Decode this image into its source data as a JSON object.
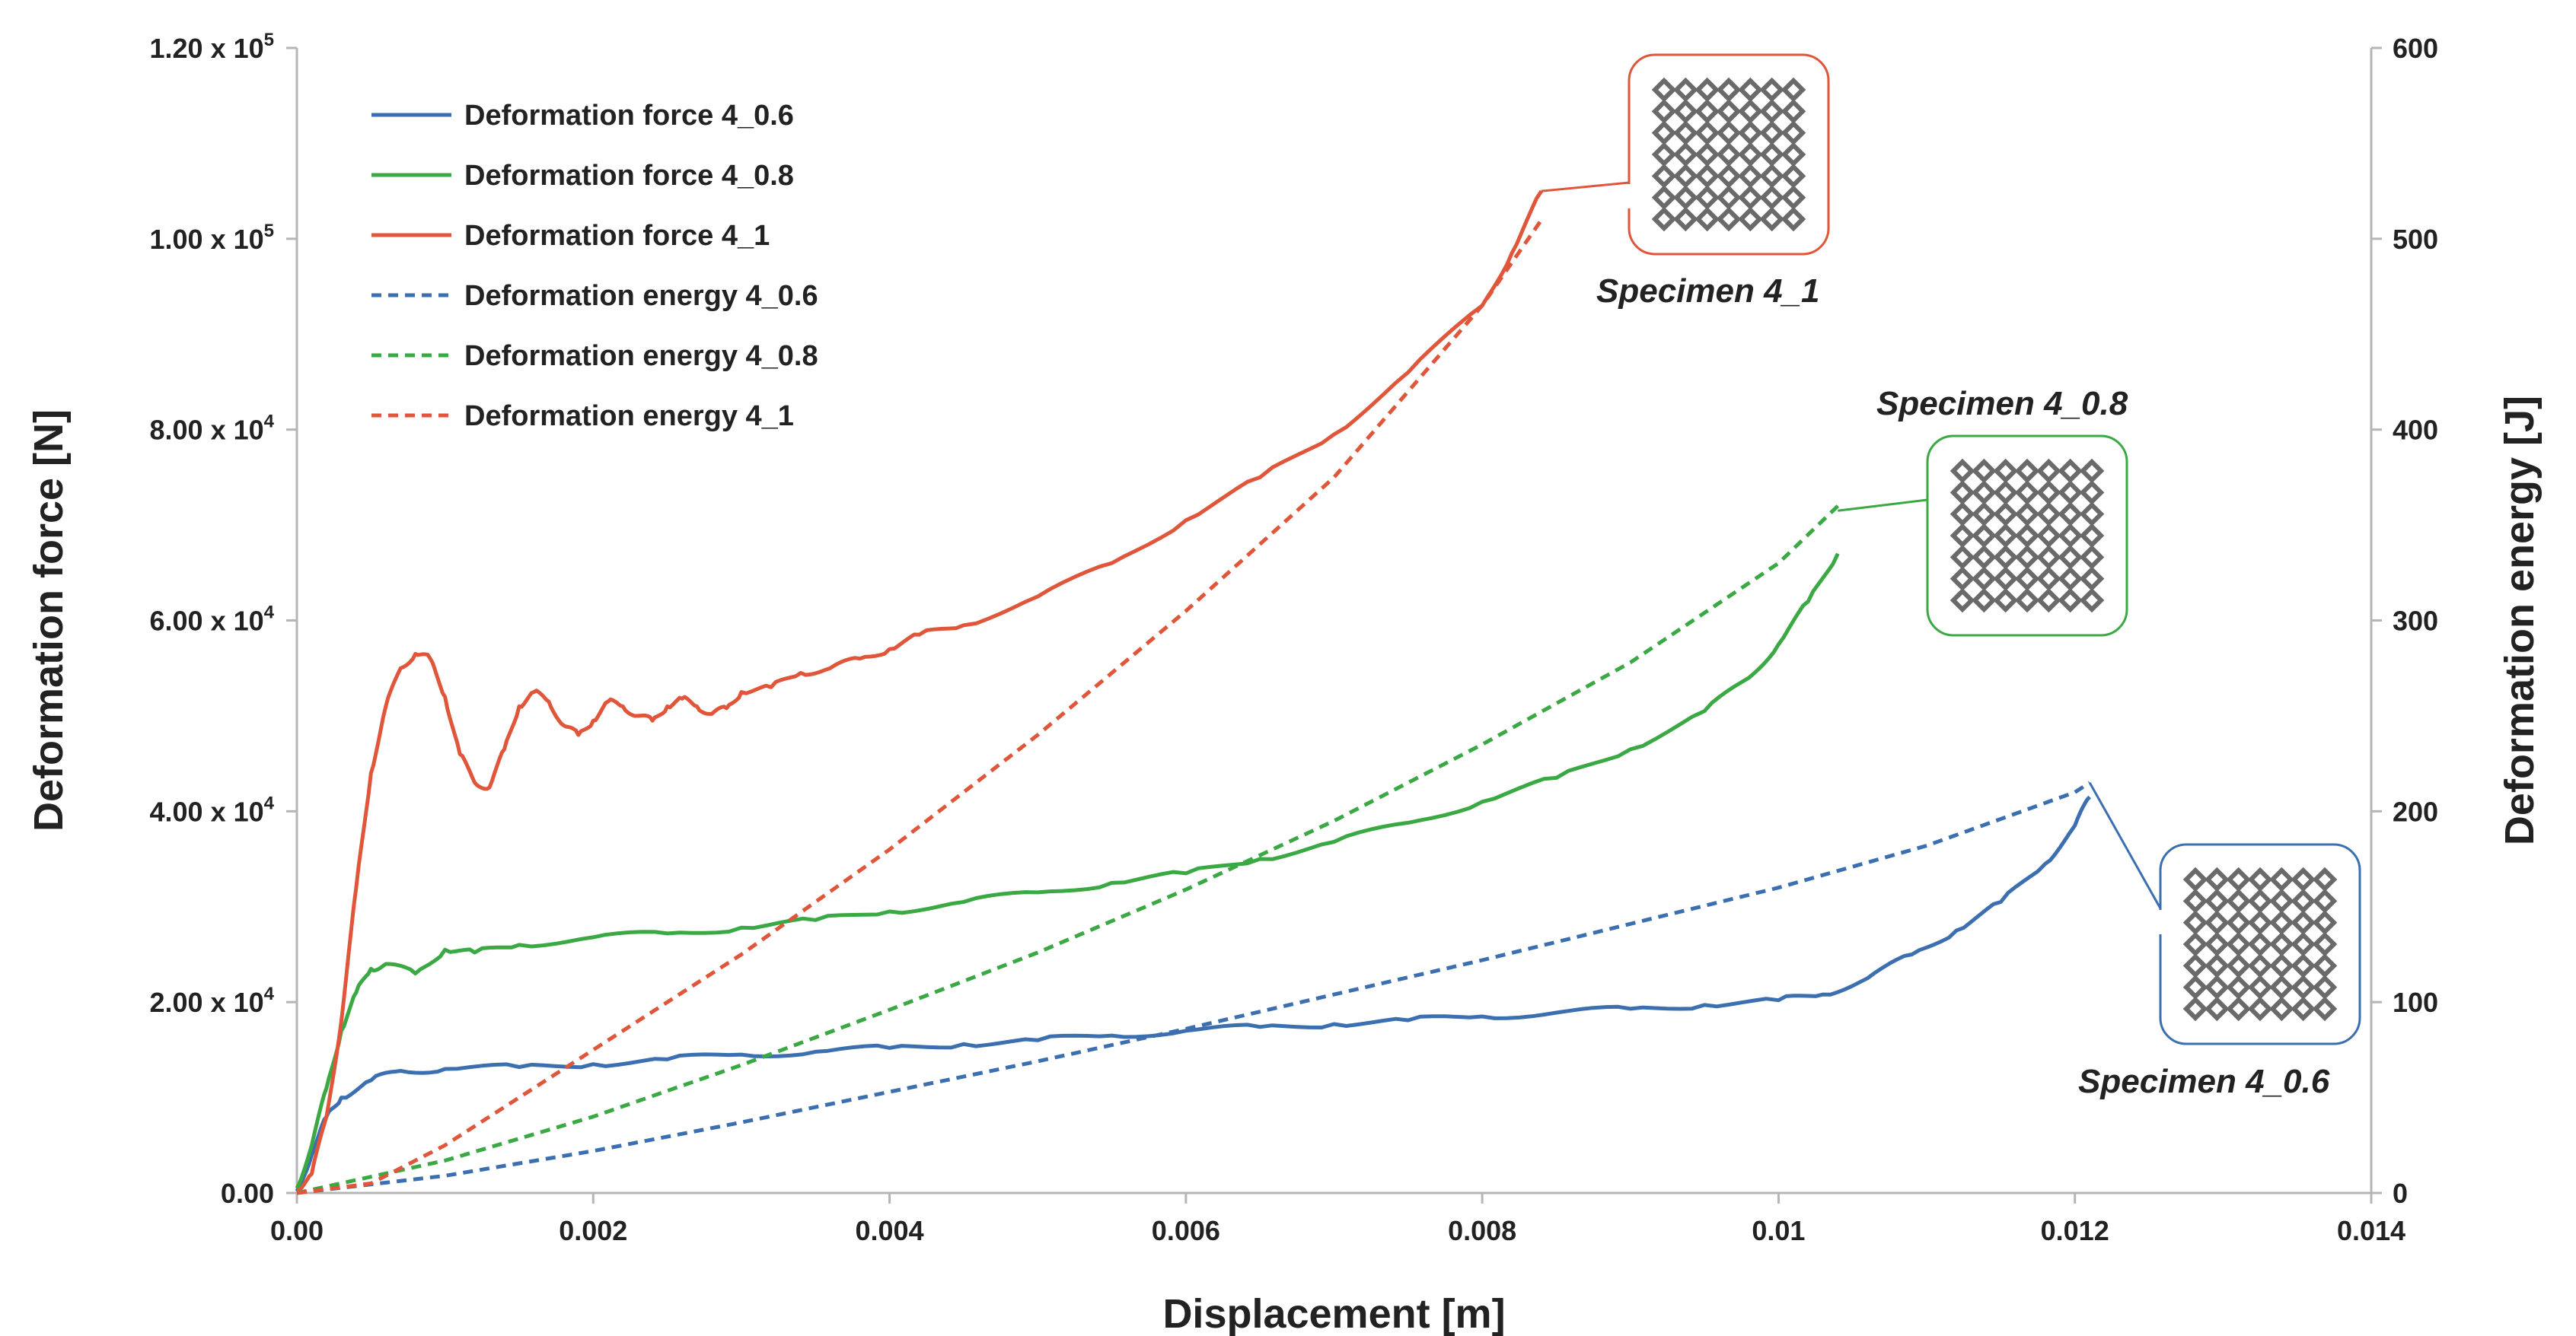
{
  "colors": {
    "blue": "#3c6fb0",
    "green": "#3aa843",
    "red": "#e0563a",
    "axis": "#b5b5b5",
    "text": "#222222",
    "lattice_dark": "#6a6a6a",
    "lattice_light": "#d0d0d0"
  },
  "chart_data": {
    "type": "line",
    "xlabel": "Displacement [m]",
    "ylabel": "Deformation force [N]",
    "y2label": "Deformation energy [J]",
    "xlim": [
      0,
      0.014
    ],
    "ylim": [
      0,
      120000
    ],
    "y2lim": [
      0,
      600
    ],
    "x_ticks": [
      0,
      0.002,
      0.004,
      0.006,
      0.008,
      0.01,
      0.012,
      0.014
    ],
    "x_tick_labels": [
      "0.00",
      "0.002",
      "0.004",
      "0.006",
      "0.008",
      "0.01",
      "0.012",
      "0.014"
    ],
    "y_ticks": [
      0,
      20000,
      40000,
      60000,
      80000,
      100000,
      120000
    ],
    "y_tick_labels": [
      {
        "base": "0.00",
        "exp": ""
      },
      {
        "base": "2.00 x 10",
        "exp": "4"
      },
      {
        "base": "4.00 x 10",
        "exp": "4"
      },
      {
        "base": "6.00 x 10",
        "exp": "4"
      },
      {
        "base": "8.00 x 10",
        "exp": "4"
      },
      {
        "base": "1.00 x 10",
        "exp": "5"
      },
      {
        "base": "1.20 x 10",
        "exp": "5"
      }
    ],
    "y2_ticks": [
      0,
      100,
      200,
      300,
      400,
      500,
      600
    ],
    "y2_tick_labels": [
      "0",
      "100",
      "200",
      "300",
      "400",
      "500",
      "600"
    ],
    "legend_position": "top-left",
    "series": [
      {
        "name": "Deformation force 4_0.6",
        "color": "blue",
        "dash": false,
        "axis": "left",
        "x": [
          0,
          0.0001,
          0.0002,
          0.0003,
          0.0005,
          0.0007,
          0.001,
          0.0015,
          0.002,
          0.0025,
          0.003,
          0.0035,
          0.004,
          0.0045,
          0.005,
          0.0055,
          0.006,
          0.0065,
          0.007,
          0.0075,
          0.008,
          0.0085,
          0.009,
          0.0095,
          0.01,
          0.0103,
          0.0106,
          0.0109,
          0.0112,
          0.0115,
          0.0118,
          0.012,
          0.0121
        ],
        "y": [
          200,
          4000,
          8000,
          10000,
          11800,
          12800,
          13000,
          13200,
          13500,
          14000,
          14500,
          14800,
          15200,
          15600,
          16000,
          16500,
          17000,
          17400,
          17700,
          18100,
          18500,
          18900,
          19300,
          19700,
          20200,
          20800,
          22500,
          25000,
          27500,
          30500,
          34500,
          38500,
          41500
        ]
      },
      {
        "name": "Deformation force 4_0.8",
        "color": "green",
        "dash": false,
        "axis": "left",
        "x": [
          0,
          0.0001,
          0.0002,
          0.0003,
          0.0004,
          0.0005,
          0.0006,
          0.0008,
          0.001,
          0.0012,
          0.0015,
          0.002,
          0.0025,
          0.003,
          0.0035,
          0.004,
          0.0045,
          0.005,
          0.0055,
          0.006,
          0.0065,
          0.007,
          0.0075,
          0.008,
          0.0085,
          0.009,
          0.0095,
          0.0098,
          0.01,
          0.0102,
          0.0104
        ],
        "y": [
          500,
          5000,
          11000,
          17000,
          21000,
          23500,
          24000,
          23000,
          25500,
          25200,
          26000,
          26800,
          27200,
          27800,
          28600,
          29500,
          30500,
          31500,
          32500,
          33500,
          35000,
          36800,
          38800,
          41000,
          43500,
          46500,
          50500,
          54000,
          57500,
          62000,
          67000
        ]
      },
      {
        "name": "Deformation force 4_1",
        "color": "red",
        "dash": false,
        "axis": "left",
        "x": [
          0,
          0.0001,
          0.0002,
          0.0003,
          0.0004,
          0.0005,
          0.0006,
          0.0007,
          0.0008,
          0.0009,
          0.001,
          0.0011,
          0.0012,
          0.0013,
          0.0014,
          0.0015,
          0.0016,
          0.0017,
          0.0018,
          0.0019,
          0.002,
          0.0021,
          0.0022,
          0.0023,
          0.0024,
          0.0025,
          0.0026,
          0.0027,
          0.0028,
          0.0029,
          0.003,
          0.0032,
          0.0034,
          0.0036,
          0.0038,
          0.004,
          0.0042,
          0.0045,
          0.005,
          0.0055,
          0.006,
          0.0065,
          0.007,
          0.0075,
          0.008,
          0.0082,
          0.0084
        ],
        "y": [
          300,
          2000,
          8000,
          18000,
          32000,
          44000,
          51000,
          55000,
          56500,
          56000,
          52000,
          46000,
          43000,
          42500,
          46500,
          51000,
          52500,
          51500,
          49000,
          48000,
          49500,
          51500,
          51000,
          50000,
          49500,
          51000,
          51800,
          51000,
          50200,
          50800,
          52500,
          53000,
          54500,
          55000,
          56000,
          57000,
          58500,
          59500,
          62500,
          66000,
          70500,
          75000,
          79500,
          86000,
          93000,
          98500,
          105000
        ]
      },
      {
        "name": "Deformation energy 4_0.6",
        "color": "blue",
        "dash": true,
        "axis": "right",
        "x": [
          0,
          0.001,
          0.002,
          0.003,
          0.004,
          0.005,
          0.006,
          0.007,
          0.008,
          0.009,
          0.01,
          0.011,
          0.012,
          0.0121
        ],
        "y": [
          0,
          9,
          22,
          37,
          53,
          69,
          86,
          104,
          122,
          141,
          160,
          182,
          210,
          215
        ]
      },
      {
        "name": "Deformation energy 4_0.8",
        "color": "green",
        "dash": true,
        "axis": "right",
        "x": [
          0,
          0.001,
          0.002,
          0.003,
          0.004,
          0.005,
          0.006,
          0.007,
          0.008,
          0.009,
          0.01,
          0.0104
        ],
        "y": [
          0,
          17,
          40,
          67,
          96,
          126,
          159,
          195,
          235,
          278,
          330,
          360
        ]
      },
      {
        "name": "Deformation energy 4_1",
        "color": "red",
        "dash": true,
        "axis": "right",
        "x": [
          0,
          0.0005,
          0.001,
          0.002,
          0.003,
          0.004,
          0.005,
          0.006,
          0.007,
          0.008,
          0.0084
        ],
        "y": [
          0,
          5,
          25,
          75,
          125,
          180,
          240,
          305,
          375,
          465,
          510
        ]
      }
    ],
    "annotations": [
      {
        "label": "Specimen 4_1",
        "color": "red",
        "target_x": 0.0084,
        "target_y": 105000
      },
      {
        "label": "Specimen 4_0.8",
        "color": "green",
        "target_x": 0.0104,
        "target_y": 71500
      },
      {
        "label": "Specimen 4_0.6",
        "color": "blue",
        "target_x": 0.0121,
        "target_y": 43000
      }
    ]
  }
}
